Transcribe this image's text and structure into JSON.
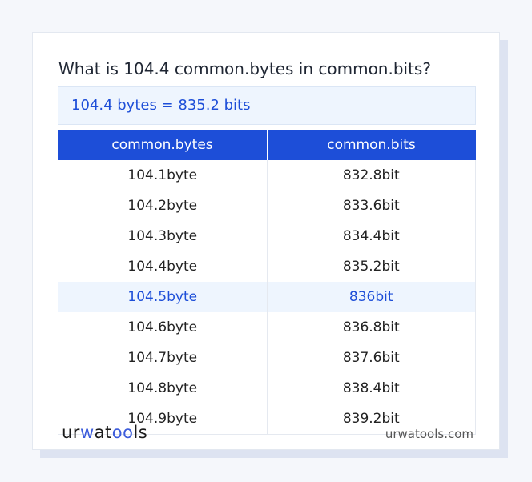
{
  "question": "What is 104.4 common.bytes in common.bits?",
  "result": "104.4 bytes = 835.2 bits",
  "table": {
    "headers": [
      "common.bytes",
      "common.bits"
    ],
    "rows": [
      [
        "104.1byte",
        "832.8bit"
      ],
      [
        "104.2byte",
        "833.6bit"
      ],
      [
        "104.3byte",
        "834.4bit"
      ],
      [
        "104.4byte",
        "835.2bit"
      ],
      [
        "104.5byte",
        "836bit"
      ],
      [
        "104.6byte",
        "836.8bit"
      ],
      [
        "104.7byte",
        "837.6bit"
      ],
      [
        "104.8byte",
        "838.4bit"
      ],
      [
        "104.9byte",
        "839.2bit"
      ]
    ],
    "highlighted_row": 4
  },
  "footer": {
    "logo": "urwatools",
    "site": "urwatools.com"
  },
  "colors": {
    "accent": "#1d4ed8",
    "highlight_bg": "#eef5fe"
  }
}
